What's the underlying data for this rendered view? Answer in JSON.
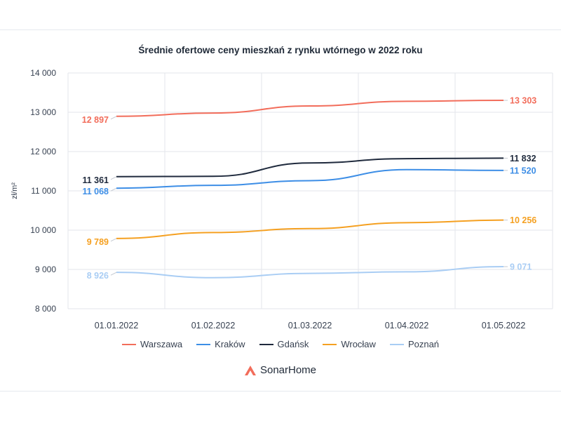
{
  "chart_data": {
    "type": "line",
    "title": "Średnie ofertowe ceny mieszkań z rynku wtórnego w 2022 roku",
    "ylabel": "zł/m²",
    "xlabel": "",
    "x": [
      "01.01.2022",
      "01.02.2022",
      "01.03.2022",
      "01.04.2022",
      "01.05.2022"
    ],
    "ylim": [
      8000,
      14000
    ],
    "yticks": [
      {
        "value": 8000,
        "label": "8 000"
      },
      {
        "value": 9000,
        "label": "9 000"
      },
      {
        "value": 10000,
        "label": "10 000"
      },
      {
        "value": 11000,
        "label": "11 000"
      },
      {
        "value": 12000,
        "label": "12 000"
      },
      {
        "value": 13000,
        "label": "13 000"
      },
      {
        "value": 14000,
        "label": "14 000"
      }
    ],
    "grid": true,
    "legend_position": "bottom",
    "series": [
      {
        "name": "Warszawa",
        "color": "#f26d5b",
        "values": [
          12897,
          12980,
          13160,
          13280,
          13303
        ],
        "first_label": "12 897",
        "last_label": "13 303"
      },
      {
        "name": "Kraków",
        "color": "#3d8ee6",
        "values": [
          11068,
          11140,
          11260,
          11540,
          11520
        ],
        "first_label": "11 068",
        "last_label": "11 520"
      },
      {
        "name": "Gdańsk",
        "color": "#1f2a3d",
        "values": [
          11361,
          11370,
          11710,
          11820,
          11832
        ],
        "first_label": "11 361",
        "last_label": "11 832"
      },
      {
        "name": "Wrocław",
        "color": "#f5a021",
        "values": [
          9789,
          9940,
          10040,
          10190,
          10256
        ],
        "first_label": "9 789",
        "last_label": "10 256"
      },
      {
        "name": "Poznań",
        "color": "#a9cdf4",
        "values": [
          8926,
          8790,
          8900,
          8940,
          9071
        ],
        "first_label": "8 926",
        "last_label": "9 071"
      }
    ]
  },
  "brand": {
    "name": "SonarHome",
    "logo_color": "#f26d5b"
  }
}
